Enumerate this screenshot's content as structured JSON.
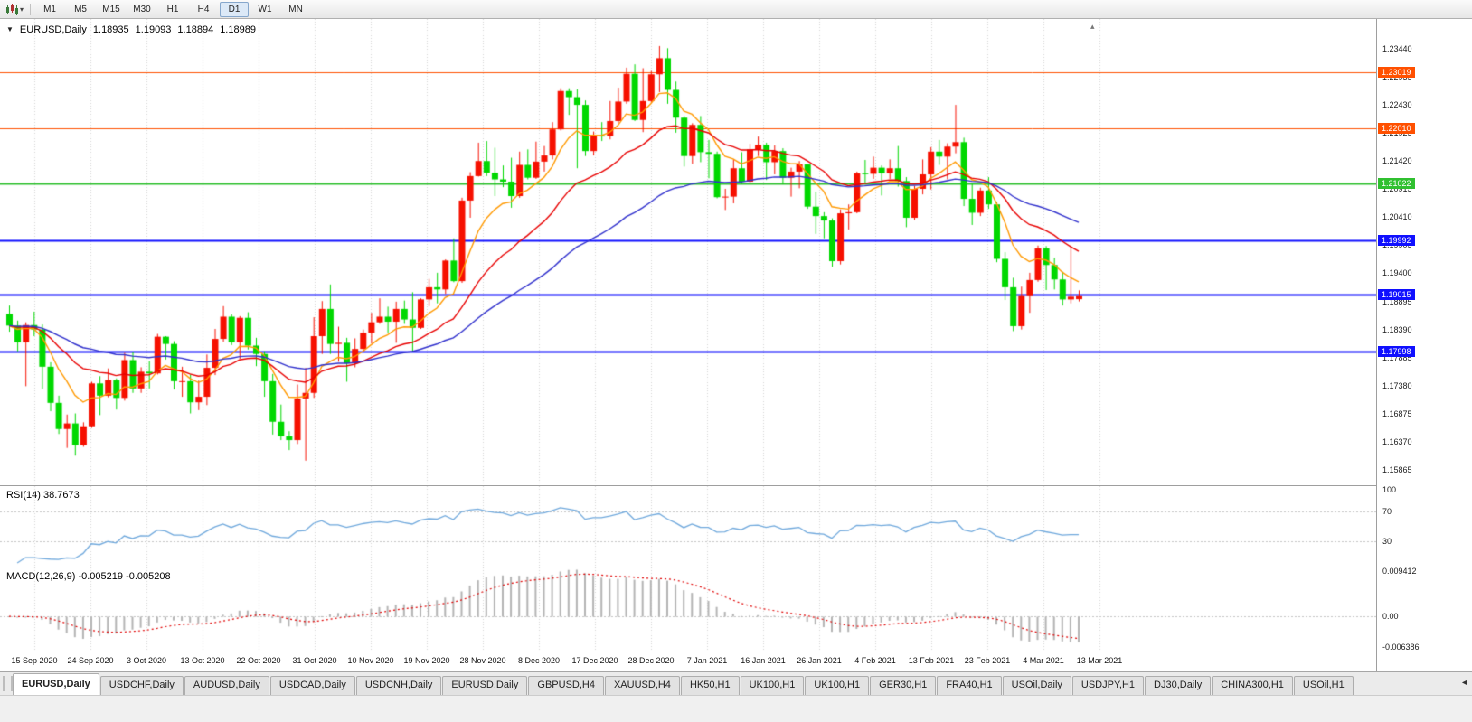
{
  "toolbar": {
    "timeframes": [
      "M1",
      "M5",
      "M15",
      "M30",
      "H1",
      "H4",
      "D1",
      "W1",
      "MN"
    ],
    "active_timeframe": "D1"
  },
  "icons": {
    "oneclick": "▼",
    "corner": "▴",
    "tab_scroll": "◄",
    "chart_type_caret": "▾"
  },
  "chart_header": {
    "symbol": "EURUSD,Daily",
    "open": "1.18935",
    "high": "1.19093",
    "low": "1.18894",
    "close": "1.18989"
  },
  "indicator_labels": {
    "rsi": "RSI(14) 38.7673",
    "macd": "MACD(12,26,9) -0.005219 -0.005208"
  },
  "colors": {
    "bull": "#F61000",
    "bear": "#00D800",
    "grid": "#D4D4D4",
    "rsi_line": "#6FA8DC",
    "macd_hist": "#B4B4B4",
    "macd_signal": "#E00000",
    "level_dotted": "#C4C4C4"
  },
  "chart_data": {
    "type": "candlestick",
    "symbol": "EURUSD",
    "timeframe": "Daily",
    "ylim": [
      1.15588,
      1.23976
    ],
    "y_ticks": [
      "1.23440",
      "1.22935",
      "1.22430",
      "1.21925",
      "1.21420",
      "1.20915",
      "1.20410",
      "1.19905",
      "1.19400",
      "1.18895",
      "1.18390",
      "1.17885",
      "1.17380",
      "1.16875",
      "1.16370",
      "1.15865"
    ],
    "x_labels": [
      "15 Sep 2020",
      "24 Sep 2020",
      "3 Oct 2020",
      "13 Oct 2020",
      "22 Oct 2020",
      "31 Oct 2020",
      "10 Nov 2020",
      "19 Nov 2020",
      "28 Nov 2020",
      "8 Dec 2020",
      "17 Dec 2020",
      "28 Dec 2020",
      "7 Jan 2021",
      "16 Jan 2021",
      "26 Jan 2021",
      "4 Feb 2021",
      "13 Feb 2021",
      "23 Feb 2021",
      "4 Mar 2021",
      "13 Mar 2021"
    ],
    "candles": [
      [
        1.1867,
        1.1882,
        1.1835,
        1.1846
      ],
      [
        1.1846,
        1.1855,
        1.18,
        1.1816
      ],
      [
        1.1816,
        1.1852,
        1.1737,
        1.1847
      ],
      [
        1.1847,
        1.1871,
        1.1827,
        1.1839
      ],
      [
        1.1839,
        1.1848,
        1.1732,
        1.1772
      ],
      [
        1.1772,
        1.178,
        1.1692,
        1.1707
      ],
      [
        1.1707,
        1.172,
        1.1651,
        1.166
      ],
      [
        1.166,
        1.1686,
        1.1626,
        1.167
      ],
      [
        1.167,
        1.1688,
        1.1612,
        1.1631
      ],
      [
        1.1631,
        1.1672,
        1.1628,
        1.1665
      ],
      [
        1.1665,
        1.1745,
        1.1662,
        1.1742
      ],
      [
        1.1742,
        1.1755,
        1.1685,
        1.172
      ],
      [
        1.172,
        1.1769,
        1.1717,
        1.1748
      ],
      [
        1.1748,
        1.1751,
        1.1695,
        1.1716
      ],
      [
        1.1716,
        1.1797,
        1.1711,
        1.1784
      ],
      [
        1.1784,
        1.1798,
        1.1725,
        1.1733
      ],
      [
        1.1733,
        1.1771,
        1.1725,
        1.1763
      ],
      [
        1.1763,
        1.1782,
        1.1733,
        1.176
      ],
      [
        1.176,
        1.1831,
        1.1758,
        1.1826
      ],
      [
        1.1826,
        1.1827,
        1.1785,
        1.1813
      ],
      [
        1.1813,
        1.1818,
        1.1731,
        1.1746
      ],
      [
        1.1746,
        1.1772,
        1.1718,
        1.1746
      ],
      [
        1.1746,
        1.1758,
        1.1688,
        1.1708
      ],
      [
        1.1708,
        1.1747,
        1.1694,
        1.1718
      ],
      [
        1.1718,
        1.1794,
        1.1703,
        1.177
      ],
      [
        1.177,
        1.184,
        1.1757,
        1.1822
      ],
      [
        1.1822,
        1.1881,
        1.1817,
        1.1862
      ],
      [
        1.1862,
        1.1866,
        1.1811,
        1.1816
      ],
      [
        1.1816,
        1.1863,
        1.1786,
        1.186
      ],
      [
        1.186,
        1.187,
        1.1803,
        1.181
      ],
      [
        1.181,
        1.1824,
        1.1773,
        1.1795
      ],
      [
        1.1795,
        1.18,
        1.1718,
        1.1746
      ],
      [
        1.1746,
        1.1759,
        1.165,
        1.1673
      ],
      [
        1.1673,
        1.1704,
        1.164,
        1.1647
      ],
      [
        1.1647,
        1.1656,
        1.1622,
        1.164
      ],
      [
        1.164,
        1.174,
        1.1633,
        1.1715
      ],
      [
        1.1715,
        1.177,
        1.1603,
        1.1725
      ],
      [
        1.1725,
        1.1861,
        1.1716,
        1.1827
      ],
      [
        1.1827,
        1.189,
        1.1795,
        1.1876
      ],
      [
        1.1876,
        1.192,
        1.1795,
        1.1813
      ],
      [
        1.1813,
        1.1844,
        1.1781,
        1.1815
      ],
      [
        1.1815,
        1.1824,
        1.1745,
        1.1778
      ],
      [
        1.1778,
        1.1823,
        1.1771,
        1.1804
      ],
      [
        1.1804,
        1.1839,
        1.1799,
        1.1833
      ],
      [
        1.1833,
        1.1869,
        1.1814,
        1.1852
      ],
      [
        1.1852,
        1.1895,
        1.1849,
        1.1862
      ],
      [
        1.1862,
        1.188,
        1.1833,
        1.1853
      ],
      [
        1.1853,
        1.1889,
        1.1815,
        1.1876
      ],
      [
        1.1876,
        1.1891,
        1.1849,
        1.1857
      ],
      [
        1.1857,
        1.1906,
        1.18,
        1.1842
      ],
      [
        1.1842,
        1.1895,
        1.184,
        1.1893
      ],
      [
        1.1893,
        1.193,
        1.1881,
        1.1915
      ],
      [
        1.1915,
        1.1941,
        1.1886,
        1.1911
      ],
      [
        1.1911,
        1.1965,
        1.1903,
        1.1963
      ],
      [
        1.1963,
        1.2003,
        1.1924,
        1.1926
      ],
      [
        1.1926,
        1.2076,
        1.1923,
        1.2071
      ],
      [
        1.2071,
        1.2122,
        1.204,
        1.2115
      ],
      [
        1.2115,
        1.2175,
        1.2114,
        1.2142
      ],
      [
        1.2142,
        1.2178,
        1.2115,
        1.2121
      ],
      [
        1.2121,
        1.2166,
        1.2079,
        1.2109
      ],
      [
        1.2109,
        1.2134,
        1.2095,
        1.2105
      ],
      [
        1.2105,
        1.2148,
        1.2058,
        1.2079
      ],
      [
        1.2079,
        1.2159,
        1.2076,
        1.2135
      ],
      [
        1.2135,
        1.2163,
        1.2109,
        1.2112
      ],
      [
        1.2112,
        1.2177,
        1.211,
        1.2141
      ],
      [
        1.2141,
        1.2169,
        1.2123,
        1.2152
      ],
      [
        1.2152,
        1.2212,
        1.2145,
        1.2199
      ],
      [
        1.2199,
        1.2273,
        1.2197,
        1.2268
      ],
      [
        1.2268,
        1.2273,
        1.2225,
        1.2257
      ],
      [
        1.2257,
        1.2271,
        1.2129,
        1.2243
      ],
      [
        1.2243,
        1.2251,
        1.2151,
        1.216
      ],
      [
        1.216,
        1.2195,
        1.2152,
        1.2188
      ],
      [
        1.2188,
        1.2212,
        1.2178,
        1.2187
      ],
      [
        1.2187,
        1.225,
        1.2181,
        1.2214
      ],
      [
        1.2214,
        1.2274,
        1.221,
        1.2249
      ],
      [
        1.2249,
        1.231,
        1.2245,
        1.2299
      ],
      [
        1.2299,
        1.2316,
        1.2214,
        1.2216
      ],
      [
        1.2216,
        1.2309,
        1.2194,
        1.225
      ],
      [
        1.225,
        1.2304,
        1.2247,
        1.2298
      ],
      [
        1.2298,
        1.2349,
        1.2266,
        1.2327
      ],
      [
        1.2327,
        1.2345,
        1.2245,
        1.227
      ],
      [
        1.227,
        1.2285,
        1.2193,
        1.222
      ],
      [
        1.222,
        1.2223,
        1.2132,
        1.2151
      ],
      [
        1.2151,
        1.221,
        1.2137,
        1.2207
      ],
      [
        1.2207,
        1.2223,
        1.214,
        1.2158
      ],
      [
        1.2158,
        1.218,
        1.2111,
        1.2155
      ],
      [
        1.2155,
        1.2159,
        1.2075,
        1.2077
      ],
      [
        1.2077,
        1.2092,
        1.2054,
        1.2078
      ],
      [
        1.2078,
        1.2145,
        1.2066,
        1.2129
      ],
      [
        1.2129,
        1.2158,
        1.2101,
        1.2105
      ],
      [
        1.2105,
        1.2173,
        1.2103,
        1.2163
      ],
      [
        1.2163,
        1.2186,
        1.2151,
        1.2171
      ],
      [
        1.2171,
        1.2175,
        1.2108,
        1.214
      ],
      [
        1.214,
        1.217,
        1.2118,
        1.216
      ],
      [
        1.216,
        1.2165,
        1.21,
        1.2112
      ],
      [
        1.2112,
        1.213,
        1.2078,
        1.2123
      ],
      [
        1.2123,
        1.2142,
        1.2093,
        1.2136
      ],
      [
        1.2136,
        1.2136,
        1.2056,
        1.206
      ],
      [
        1.206,
        1.2087,
        1.2011,
        1.2043
      ],
      [
        1.2043,
        1.205,
        1.2003,
        1.2035
      ],
      [
        1.2035,
        1.2039,
        1.1952,
        1.1962
      ],
      [
        1.1962,
        1.2055,
        1.1956,
        1.2048
      ],
      [
        1.2048,
        1.2064,
        1.2019,
        1.205
      ],
      [
        1.205,
        1.2123,
        1.2048,
        1.212
      ],
      [
        1.212,
        1.2144,
        1.2103,
        1.2119
      ],
      [
        1.2119,
        1.215,
        1.211,
        1.213
      ],
      [
        1.213,
        1.2134,
        1.208,
        1.212
      ],
      [
        1.212,
        1.2145,
        1.211,
        1.2129
      ],
      [
        1.2129,
        1.2169,
        1.2096,
        1.2106
      ],
      [
        1.2106,
        1.2113,
        1.2023,
        1.204
      ],
      [
        1.204,
        1.2097,
        1.2036,
        1.2092
      ],
      [
        1.2092,
        1.2145,
        1.2082,
        1.2118
      ],
      [
        1.2118,
        1.2167,
        1.2091,
        1.2159
      ],
      [
        1.2159,
        1.218,
        1.2135,
        1.215
      ],
      [
        1.215,
        1.2174,
        1.2109,
        1.2168
      ],
      [
        1.2168,
        1.2243,
        1.2156,
        1.2176
      ],
      [
        1.2176,
        1.2184,
        1.2061,
        1.2074
      ],
      [
        1.2074,
        1.2101,
        1.2027,
        1.2049
      ],
      [
        1.2049,
        1.2094,
        1.2043,
        1.2089
      ],
      [
        1.2089,
        1.2113,
        1.2056,
        1.2064
      ],
      [
        1.2064,
        1.2069,
        1.196,
        1.1966
      ],
      [
        1.1966,
        1.1978,
        1.1892,
        1.1915
      ],
      [
        1.1915,
        1.1932,
        1.1836,
        1.1845
      ],
      [
        1.1845,
        1.1916,
        1.1839,
        1.1899
      ],
      [
        1.1899,
        1.1941,
        1.1869,
        1.1928
      ],
      [
        1.1928,
        1.199,
        1.1925,
        1.1985
      ],
      [
        1.1985,
        1.1989,
        1.191,
        1.1955
      ],
      [
        1.1955,
        1.1968,
        1.1911,
        1.1929
      ],
      [
        1.1929,
        1.1943,
        1.1882,
        1.1893
      ],
      [
        1.1893,
        1.199,
        1.1886,
        1.1898
      ],
      [
        1.18935,
        1.19093,
        1.18894,
        1.18989
      ]
    ],
    "moving_averages": [
      {
        "period": 8,
        "color": "#FF9900"
      },
      {
        "period": 20,
        "color": "#E80000"
      },
      {
        "period": 45,
        "color": "#3030CC"
      }
    ],
    "h_lines": [
      {
        "price": "1.23019",
        "color": "#FF5000",
        "width": 1
      },
      {
        "price": "1.22010",
        "color": "#FF5000",
        "width": 1
      },
      {
        "price": "1.21022",
        "color": "#30C030",
        "width": 2
      },
      {
        "price": "1.19992",
        "color": "#1010FF",
        "width": 2
      },
      {
        "price": "1.19015",
        "color": "#1010FF",
        "width": 2
      },
      {
        "price": "1.17998",
        "color": "#1010FF",
        "width": 2
      }
    ],
    "rsi": {
      "period": 14,
      "current": "38.7673",
      "levels": [
        70,
        30
      ],
      "scale_labels": [
        "100",
        "70",
        "30"
      ]
    },
    "macd": {
      "fast": 12,
      "slow": 26,
      "signal": 9,
      "current": [
        "-0.005219",
        "-0.005208"
      ],
      "scale_labels": [
        "0.009412",
        "0.00",
        "-0.006386"
      ]
    }
  },
  "tabs": {
    "active_index": 0,
    "items": [
      "EURUSD,Daily",
      "USDCHF,Daily",
      "AUDUSD,Daily",
      "USDCAD,Daily",
      "USDCNH,Daily",
      "EURUSD,Daily",
      "GBPUSD,H4",
      "XAUUSD,H4",
      "HK50,H1",
      "UK100,H1",
      "UK100,H1",
      "GER30,H1",
      "FRA40,H1",
      "USOil,Daily",
      "USDJPY,H1",
      "DJ30,Daily",
      "CHINA300,H1",
      "USOil,H1"
    ]
  }
}
